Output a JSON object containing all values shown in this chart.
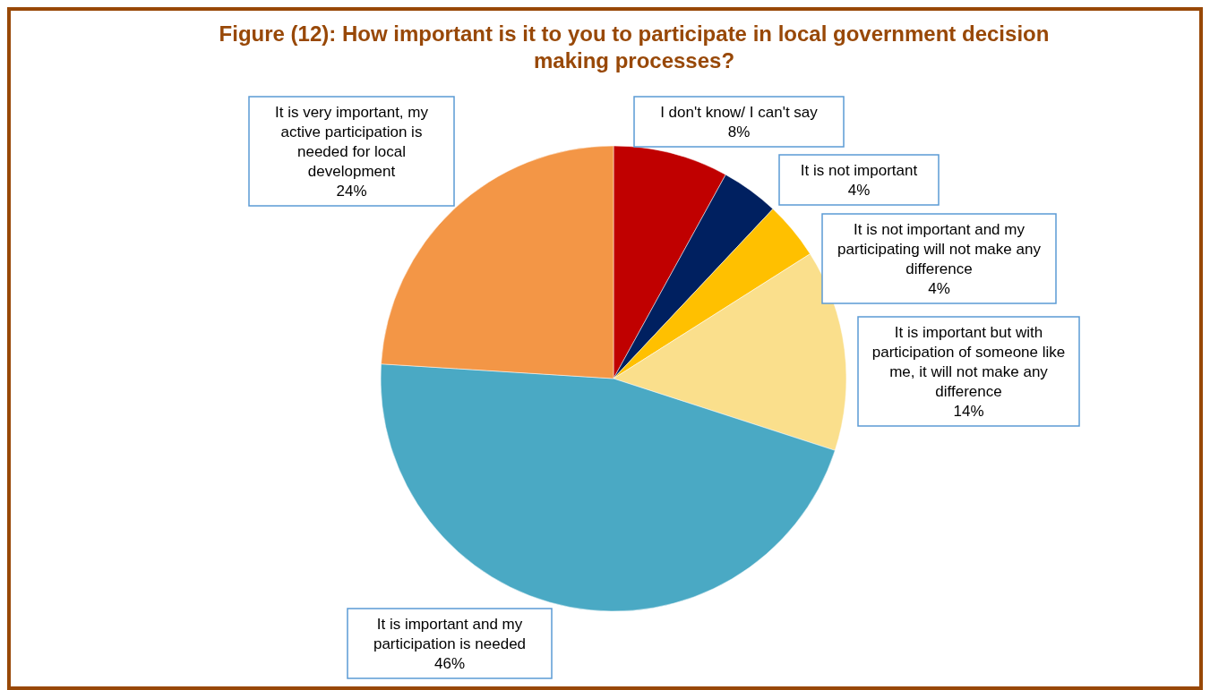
{
  "chart_data": {
    "type": "pie",
    "title": "Figure (12): How important is it to you to participate in local government decision making processes?",
    "categories": [
      "I don't know/ I can't say",
      "It is not important",
      "It is not important and my participating will not make any difference",
      "It is important but with participation of someone like me, it will not make any difference",
      "It is important and my participation is needed",
      "It is very important, my active participation is needed for local development"
    ],
    "values": [
      8,
      4,
      4,
      14,
      46,
      24
    ],
    "colors": [
      "#c00000",
      "#002060",
      "#ffc000",
      "#fadf8c",
      "#4aa9c4",
      "#f39646"
    ],
    "value_labels": [
      "8%",
      "4%",
      "4%",
      "14%",
      "46%",
      "24%"
    ]
  }
}
